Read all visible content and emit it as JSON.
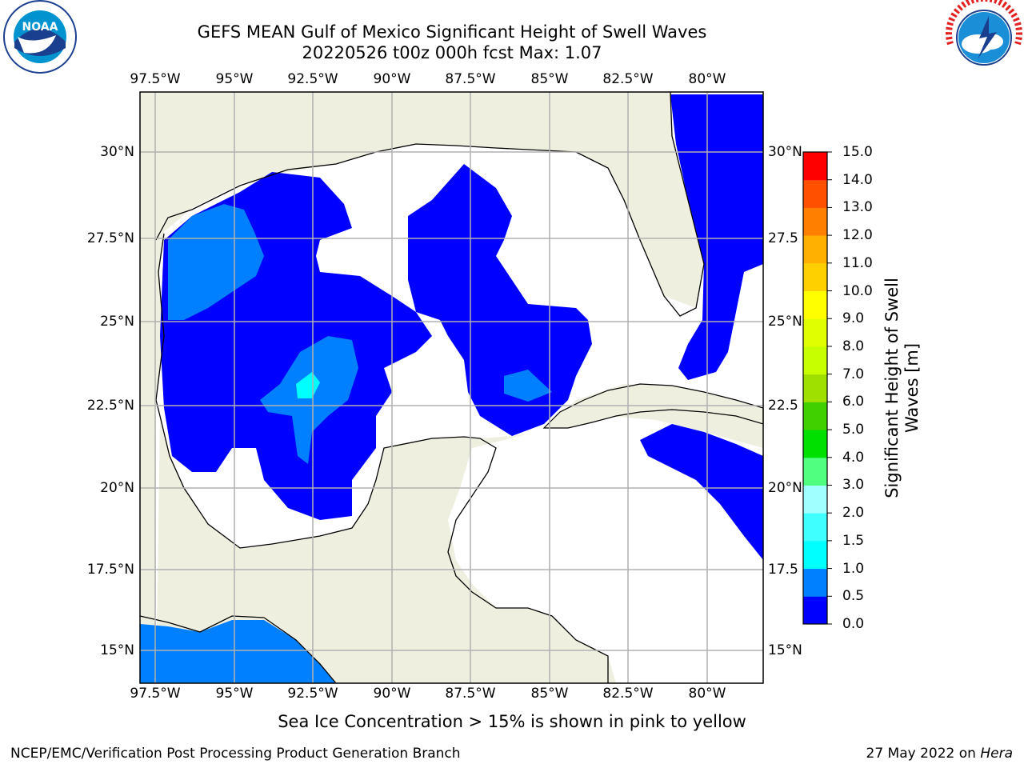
{
  "title_line1": "GEFS MEAN Gulf of Mexico Significant Height of Swell Waves",
  "title_line2": "20220526 t00z 000h fcst   Max: 1.07",
  "lon_labels": [
    "97.5°W",
    "95°W",
    "92.5°W",
    "90°W",
    "87.5°W",
    "85°W",
    "82.5°W",
    "80°W"
  ],
  "lat_labels_left": [
    "30°N",
    "27.5°N",
    "25°N",
    "22.5°N",
    "20°N",
    "17.5°N",
    "15°N"
  ],
  "lat_labels_right": [
    "30°N",
    "27.5",
    "25°N",
    "22.5",
    "20°N",
    "17.5",
    "15°N"
  ],
  "colorbar": {
    "title_line1": "Significant Height of Swell",
    "title_line2": "Waves [m]",
    "ticks": [
      "0.0",
      "0.5",
      "1.0",
      "1.5",
      "2.0",
      "3.0",
      "4.0",
      "5.0",
      "6.0",
      "7.0",
      "8.0",
      "9.0",
      "10.0",
      "11.0",
      "12.0",
      "13.0",
      "14.0",
      "15.0"
    ],
    "colors": [
      "#0000ff",
      "#0080ff",
      "#00ffff",
      "#40ffff",
      "#a0ffff",
      "#50ff80",
      "#00e000",
      "#40d000",
      "#a0e000",
      "#c8ff00",
      "#e0ff00",
      "#ffff00",
      "#ffd000",
      "#ffb000",
      "#ff8000",
      "#ff5000",
      "#ff0000"
    ]
  },
  "note": "Sea Ice Concentration > 15% is shown in pink to yellow",
  "footer_left": "NCEP/EMC/Verification Post Processing Product Generation Branch",
  "footer_right_date": "27 May 2022 on",
  "footer_right_host": "Hera",
  "logos": {
    "noaa_text": "NOAA",
    "nws_text": "NATIONAL WEATHER SERVICE"
  }
}
